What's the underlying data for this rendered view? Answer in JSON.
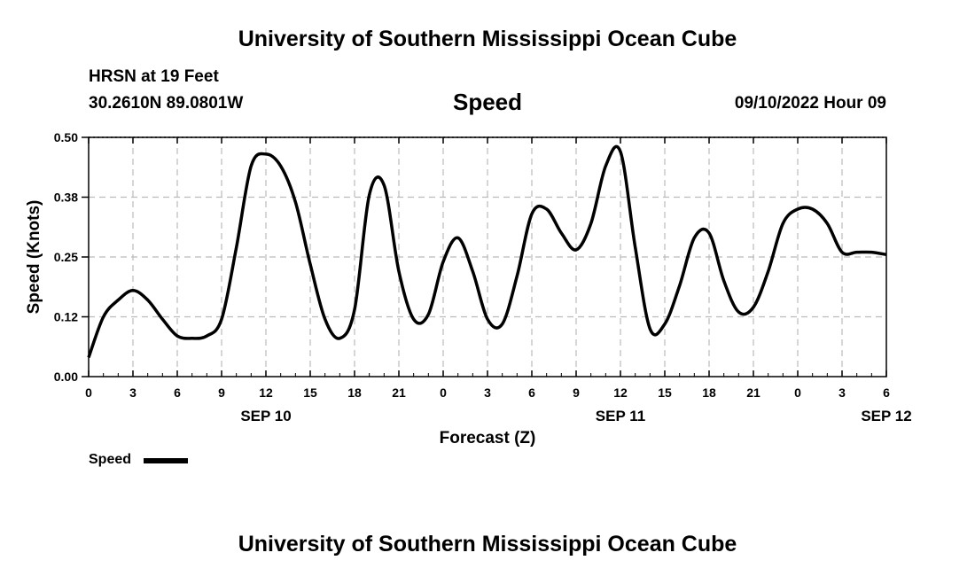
{
  "header": {
    "title": "University of Southern Mississippi Ocean Cube",
    "station": "HRSN at 19 Feet",
    "location": "30.2610N  89.0801W",
    "timestamp": "09/10/2022 Hour 09"
  },
  "footer": {
    "title": "University of Southern Mississippi Ocean Cube"
  },
  "colors": {
    "series": "#000000",
    "grid": "#bbbbbb"
  },
  "chart_data": {
    "type": "line",
    "title": "Speed",
    "xlabel": "Forecast (Z)",
    "ylabel": "Speed (Knots)",
    "ylim": [
      0,
      0.5
    ],
    "yticks": [
      "0.00",
      "0.12",
      "0.25",
      "0.38",
      "0.50"
    ],
    "xticks": [
      "0",
      "3",
      "6",
      "9",
      "12",
      "15",
      "18",
      "21",
      "0",
      "3",
      "6",
      "9",
      "12",
      "15",
      "18",
      "21",
      "0",
      "3",
      "6"
    ],
    "date_labels": [
      {
        "label": "SEP 10",
        "hour": 12
      },
      {
        "label": "SEP 11",
        "hour": 36
      },
      {
        "label": "SEP 12",
        "hour": 54
      }
    ],
    "grid": true,
    "legend_position": "bottom-left",
    "series": [
      {
        "name": "Speed",
        "x": [
          0,
          1,
          2,
          3,
          4,
          5,
          6,
          7,
          8,
          9,
          10,
          11,
          12,
          13,
          14,
          15,
          16,
          17,
          18,
          19,
          20,
          21,
          22,
          23,
          24,
          25,
          26,
          27,
          28,
          29,
          30,
          31,
          32,
          33,
          34,
          35,
          36,
          37,
          38,
          39,
          40,
          41,
          42,
          43,
          44,
          45,
          46,
          47,
          48,
          49,
          50,
          51,
          52,
          53,
          54
        ],
        "y": [
          0.04,
          0.125,
          0.16,
          0.18,
          0.16,
          0.12,
          0.085,
          0.08,
          0.085,
          0.12,
          0.27,
          0.44,
          0.465,
          0.44,
          0.365,
          0.235,
          0.12,
          0.08,
          0.14,
          0.38,
          0.4,
          0.22,
          0.12,
          0.13,
          0.24,
          0.29,
          0.22,
          0.12,
          0.11,
          0.21,
          0.34,
          0.35,
          0.3,
          0.265,
          0.32,
          0.44,
          0.47,
          0.27,
          0.1,
          0.11,
          0.19,
          0.29,
          0.3,
          0.2,
          0.135,
          0.145,
          0.22,
          0.32,
          0.35,
          0.35,
          0.32,
          0.26,
          0.26,
          0.26,
          0.255
        ]
      }
    ]
  },
  "legend": {
    "label": "Speed"
  }
}
